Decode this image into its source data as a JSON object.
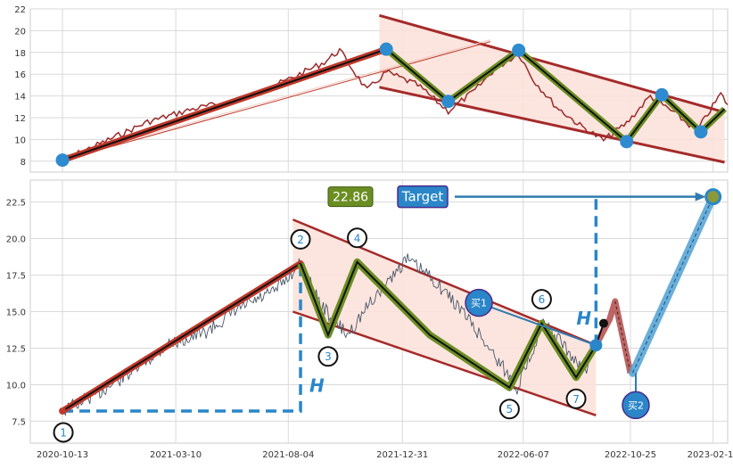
{
  "chart_data": [
    {
      "type": "line",
      "panel": "top",
      "title": "",
      "xlabel": "",
      "ylabel": "",
      "ylim": [
        7,
        22
      ],
      "yticks": [
        8,
        10,
        12,
        14,
        16,
        18,
        20,
        22
      ],
      "grid": true,
      "x_range": [
        "2020-09-01",
        "2023-03-01"
      ],
      "series": [
        {
          "style": "wavy-price",
          "color": "#9b2a2a",
          "x": [
            "2020-10-13",
            "2020-12-01",
            "2021-02-01",
            "2021-04-01",
            "2021-06-01",
            "2021-08-01",
            "2021-09-20",
            "2021-10-10",
            "2021-11-15",
            "2021-12-10",
            "2022-01-20",
            "2022-03-01",
            "2022-04-05",
            "2022-05-01",
            "2022-06-01",
            "2022-06-20",
            "2022-07-20",
            "2022-08-20",
            "2022-09-20",
            "2022-10-20",
            "2022-11-20",
            "2022-12-20",
            "2023-01-20",
            "2023-02-20",
            "2023-03-01"
          ],
          "y": [
            8.1,
            9.6,
            11.6,
            12.8,
            13.6,
            15.4,
            17.1,
            18.2,
            14.5,
            16.2,
            15.0,
            12.6,
            14.5,
            16.5,
            17.9,
            15.5,
            13.0,
            11.3,
            9.9,
            11.5,
            14.0,
            12.5,
            10.8,
            14.2,
            13.2
          ]
        },
        {
          "style": "zigzag",
          "color": "#6b8e23",
          "x": [
            "2021-12-10",
            "2022-03-01",
            "2022-06-01",
            "2022-10-20",
            "2022-12-05",
            "2023-01-25",
            "2023-02-25"
          ],
          "y": [
            18.3,
            13.5,
            18.2,
            9.8,
            14.1,
            10.7,
            12.8
          ]
        }
      ],
      "trend_line": {
        "x": [
          "2020-10-13",
          "2021-12-10"
        ],
        "y": [
          8.1,
          18.3
        ],
        "color": "#c0392b"
      },
      "wedge_upper": {
        "x": [
          "2021-12-01",
          "2023-02-25"
        ],
        "y": [
          21.4,
          12.5
        ]
      },
      "wedge_lower": {
        "x": [
          "2021-12-01",
          "2023-02-25"
        ],
        "y": [
          14.8,
          7.9
        ]
      },
      "pivots": {
        "x": [
          "2020-10-13",
          "2021-12-10",
          "2022-03-01",
          "2022-06-01",
          "2022-10-20",
          "2022-12-05",
          "2023-01-25"
        ],
        "y": [
          8.1,
          18.3,
          13.5,
          18.2,
          9.8,
          14.1,
          10.7
        ],
        "color": "#2e8bcf"
      }
    },
    {
      "type": "line",
      "panel": "bottom",
      "title": "",
      "xlabel": "",
      "ylabel": "",
      "ylim": [
        6.0,
        24.0
      ],
      "yticks": [
        7.5,
        10.0,
        12.5,
        15.0,
        17.5,
        20.0,
        22.5
      ],
      "grid": true,
      "x_range": [
        "2020-09-01",
        "2023-03-01"
      ],
      "x_tick_labels": [
        "2020-10-13",
        "2021-03-10",
        "2021-08-04",
        "2021-12-31",
        "2022-06-07",
        "2022-10-25",
        "2023-02-10"
      ],
      "price_series": {
        "color": "#4a5568",
        "x": [
          "2020-10-13",
          "2020-12-01",
          "2021-01-15",
          "2021-03-01",
          "2021-04-15",
          "2021-06-01",
          "2021-07-15",
          "2021-08-20",
          "2021-09-15",
          "2021-10-20",
          "2021-11-25",
          "2022-01-05",
          "2022-02-10",
          "2022-03-20",
          "2022-04-25",
          "2022-05-30",
          "2022-06-15",
          "2022-07-01",
          "2022-07-25",
          "2022-08-25",
          "2022-09-10"
        ],
        "y": [
          8.2,
          9.5,
          11.0,
          12.8,
          13.5,
          15.2,
          16.3,
          18.3,
          15.5,
          13.4,
          16.0,
          18.6,
          17.2,
          15.0,
          12.4,
          9.8,
          11.8,
          14.2,
          13.0,
          10.8,
          12.7
        ]
      },
      "zigzag": {
        "color": "#6b8e23",
        "x": [
          "2021-08-20",
          "2021-09-25",
          "2021-11-02",
          "2022-02-05",
          "2022-05-20",
          "2022-07-01",
          "2022-08-15",
          "2022-09-10"
        ],
        "y": [
          18.3,
          13.4,
          18.4,
          13.4,
          9.8,
          14.2,
          10.5,
          12.7
        ]
      },
      "trend_line": {
        "x": [
          "2020-10-13",
          "2021-08-20"
        ],
        "y": [
          8.2,
          18.3
        ],
        "color": "#c0392b"
      },
      "wedge_upper": {
        "x": [
          "2021-08-10",
          "2022-09-10"
        ],
        "y": [
          21.3,
          12.7
        ]
      },
      "wedge_lower": {
        "x": [
          "2021-08-10",
          "2022-09-10"
        ],
        "y": [
          15.0,
          7.9
        ]
      },
      "points": [
        {
          "label": "1",
          "x": "2020-10-13",
          "y": 8.2,
          "label_pos": "below"
        },
        {
          "label": "2",
          "x": "2021-08-20",
          "y": 18.3,
          "label_pos": "above"
        },
        {
          "label": "3",
          "x": "2021-09-25",
          "y": 13.4,
          "label_pos": "below"
        },
        {
          "label": "4",
          "x": "2021-11-02",
          "y": 18.4,
          "label_pos": "above"
        },
        {
          "label": "5",
          "x": "2022-05-20",
          "y": 9.8,
          "label_pos": "below"
        },
        {
          "label": "6",
          "x": "2022-07-01",
          "y": 14.2,
          "label_pos": "above"
        },
        {
          "label": "7",
          "x": "2022-08-15",
          "y": 10.5,
          "label_pos": "below"
        }
      ],
      "projection": {
        "color": "#b24a4a",
        "x": [
          "2022-09-10",
          "2022-09-28",
          "2022-10-05",
          "2022-10-25"
        ],
        "y": [
          12.7,
          14.5,
          15.7,
          10.8
        ]
      },
      "projection_dot": {
        "x": "2022-09-20",
        "y": 14.2
      },
      "buy_signals": [
        {
          "label": "买1",
          "x": "2022-04-10",
          "y": 15.6,
          "arrow_to": {
            "x": "2022-09-10",
            "y": 12.7
          }
        },
        {
          "label": "买2",
          "x": "2022-11-01",
          "y": 8.6,
          "arrow_to": {
            "x": "2022-11-01",
            "y": 10.8
          }
        }
      ],
      "target": {
        "label": "Target",
        "value": "22.86",
        "x": "2023-02-10",
        "y": 22.86
      },
      "target_line_from": {
        "x": "2022-10-28",
        "y": 10.8
      },
      "h_markers": [
        {
          "text": "H",
          "x": "2021-08-20",
          "from_y": 8.2,
          "to_y": 18.3,
          "baseline_x": "2020-10-13"
        },
        {
          "text": "H",
          "x": "2022-09-10",
          "from_y": 12.7,
          "to_y": 22.86
        }
      ]
    }
  ]
}
